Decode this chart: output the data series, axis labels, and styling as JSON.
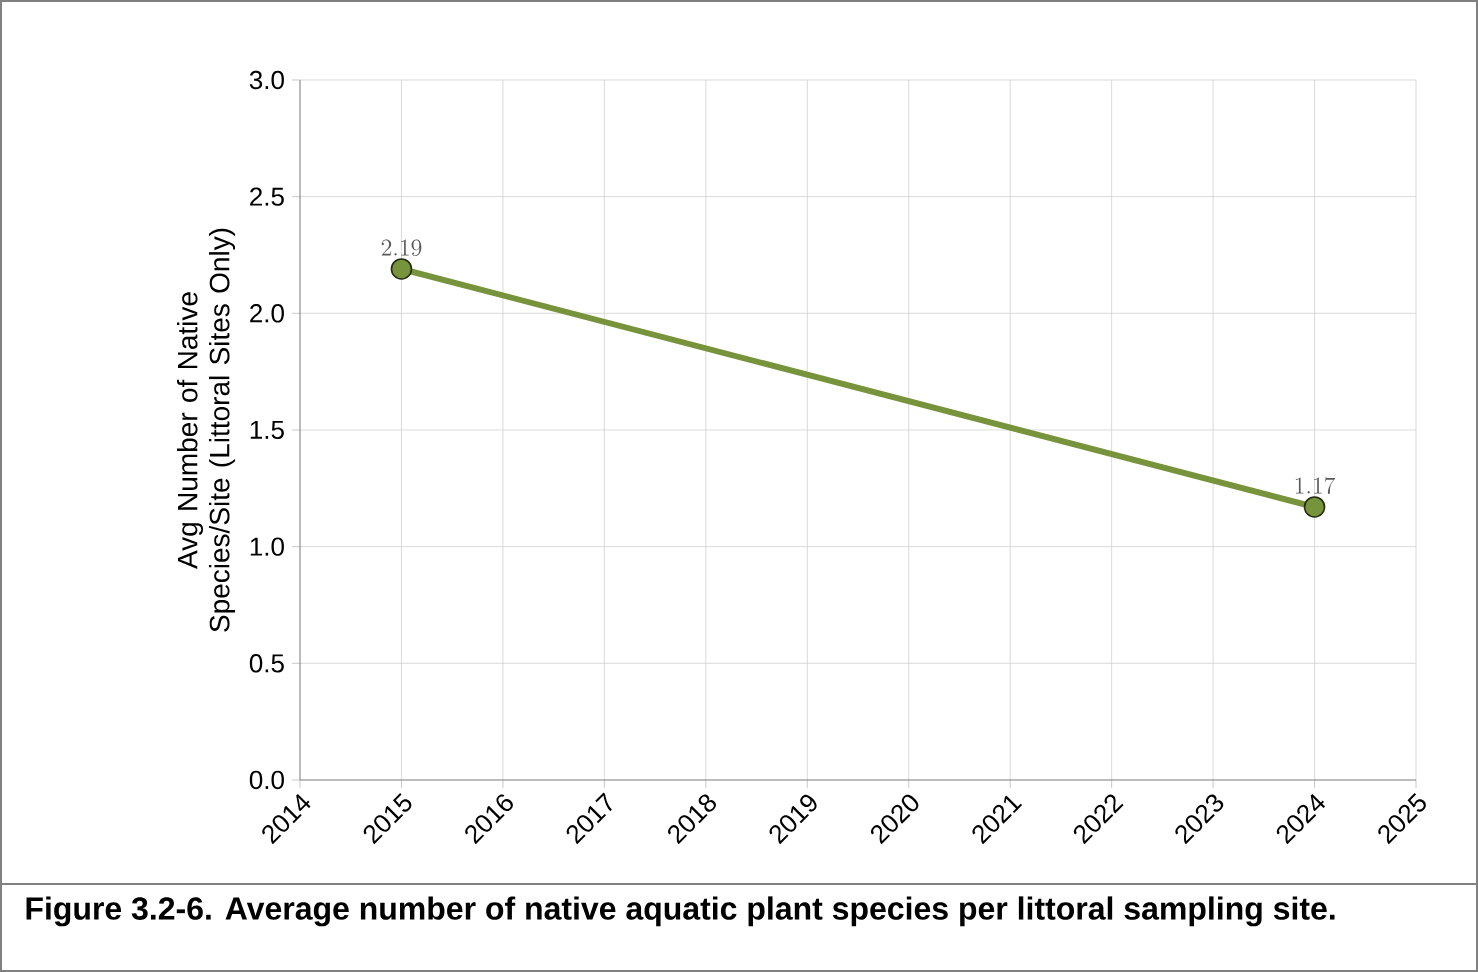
{
  "chart_data": {
    "type": "line",
    "ylabel": "Avg Number of Native Species/Site (Littoral Sites Only)",
    "annotations": [
      "Figure 3.2-6.  Average number of native aquatic plant species per littoral sampling site."
    ],
    "x": [
      2015,
      2024
    ],
    "values": [
      2.19,
      1.17
    ],
    "color": "#77933c",
    "marker": "circle",
    "data_labels": true,
    "grid": true,
    "xlim": [
      2014,
      2025
    ],
    "xticks": [
      2014,
      2015,
      2016,
      2017,
      2018,
      2019,
      2020,
      2021,
      2022,
      2023,
      2024,
      2025
    ],
    "ylim": [
      0,
      3
    ],
    "yticks": [
      {
        "value": 0,
        "label": "0.0"
      },
      {
        "value": 0.5,
        "label": "0.5"
      },
      {
        "value": 1,
        "label": "1.0"
      },
      {
        "value": 1.5,
        "label": "1.5"
      },
      {
        "value": 2,
        "label": "2.0"
      },
      {
        "value": 2.5,
        "label": "2.5"
      },
      {
        "value": 3,
        "label": "3.0"
      }
    ]
  }
}
